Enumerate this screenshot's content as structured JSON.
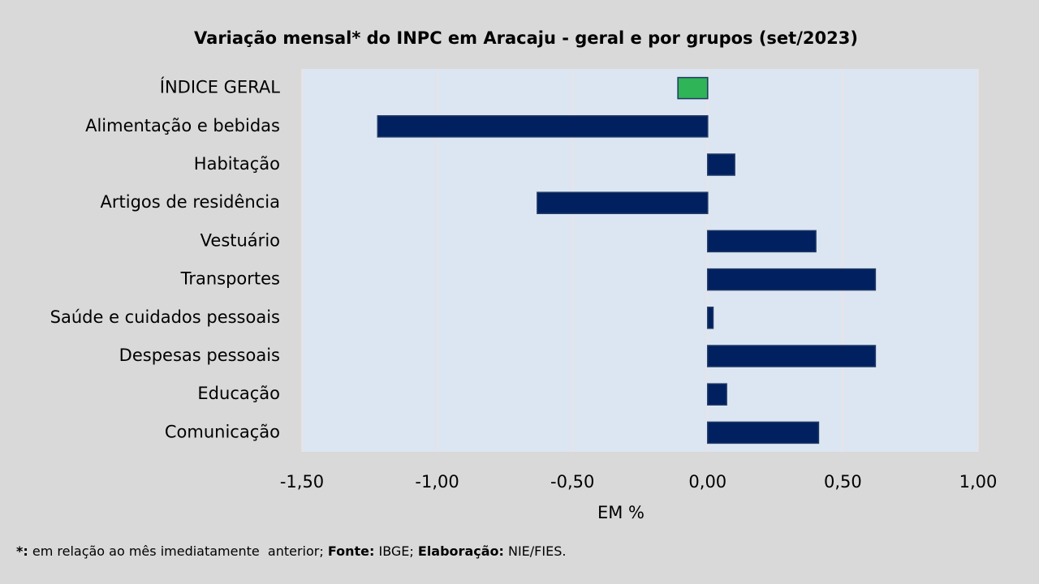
{
  "chart_data": {
    "type": "hbar",
    "title": "Variação  mensal* do INPC em Aracaju  - geral e por grupos (set/2023)",
    "categories": [
      "ÍNDICE GERAL",
      "Alimentação e bebidas",
      "Habitação",
      "Artigos de residência",
      "Vestuário",
      "Transportes",
      "Saúde e cuidados pessoais",
      "Despesas pessoais",
      "Educação",
      "Comunicação"
    ],
    "values": [
      -0.11,
      -1.22,
      0.1,
      -0.63,
      0.4,
      0.62,
      0.02,
      0.62,
      0.07,
      0.41
    ],
    "colors": [
      "#2fb457",
      "#002060",
      "#002060",
      "#002060",
      "#002060",
      "#002060",
      "#002060",
      "#002060",
      "#002060",
      "#002060"
    ],
    "xlabel": "EM %",
    "xlim": [
      -1.5,
      1.0
    ],
    "xticks": [
      {
        "value": -1.5,
        "label": "-1,50"
      },
      {
        "value": -1.0,
        "label": "-1,00"
      },
      {
        "value": -0.5,
        "label": "-0,50"
      },
      {
        "value": 0,
        "label": "0,00"
      },
      {
        "value": 0.5,
        "label": "0,50"
      },
      {
        "value": 1.0,
        "label": "1,00"
      }
    ],
    "grid": true,
    "footnote": [
      {
        "text": "*:",
        "bold": true
      },
      {
        "text": " em relação ao mês imediatamente  anterior; ",
        "bold": false
      },
      {
        "text": "Fonte:",
        "bold": true
      },
      {
        "text": " IBGE; ",
        "bold": false
      },
      {
        "text": "Elaboração:",
        "bold": true
      },
      {
        "text": " NIE/FIES.",
        "bold": false
      }
    ]
  }
}
